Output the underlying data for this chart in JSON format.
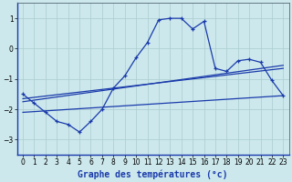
{
  "xlabel": "Graphe des températures (°c)",
  "background_color": "#cce8ec",
  "grid_color": "#aaccd0",
  "line_color": "#1a3aab",
  "x_data": [
    0,
    1,
    2,
    3,
    4,
    5,
    6,
    7,
    8,
    9,
    10,
    11,
    12,
    13,
    14,
    15,
    16,
    17,
    18,
    19,
    20,
    21,
    22,
    23
  ],
  "main_line": [
    -1.5,
    -1.8,
    -2.1,
    -2.4,
    -2.5,
    -2.75,
    -2.4,
    -2.0,
    -1.3,
    -0.9,
    -0.3,
    0.2,
    0.95,
    1.0,
    1.0,
    0.65,
    0.9,
    -0.65,
    -0.75,
    -0.4,
    -0.35,
    -0.45,
    -1.05,
    -1.55
  ],
  "trend1_x": [
    0,
    23
  ],
  "trend1_y": [
    -1.65,
    -0.65
  ],
  "trend2_x": [
    0,
    23
  ],
  "trend2_y": [
    -1.75,
    -0.55
  ],
  "trend3_x": [
    0,
    23
  ],
  "trend3_y": [
    -2.1,
    -1.55
  ],
  "xlim": [
    -0.5,
    23.5
  ],
  "ylim": [
    -3.5,
    1.5
  ],
  "yticks": [
    -3,
    -2,
    -1,
    0,
    1
  ],
  "xticks": [
    0,
    1,
    2,
    3,
    4,
    5,
    6,
    7,
    8,
    9,
    10,
    11,
    12,
    13,
    14,
    15,
    16,
    17,
    18,
    19,
    20,
    21,
    22,
    23
  ],
  "xlabel_fontsize": 7,
  "tick_fontsize": 5.5
}
